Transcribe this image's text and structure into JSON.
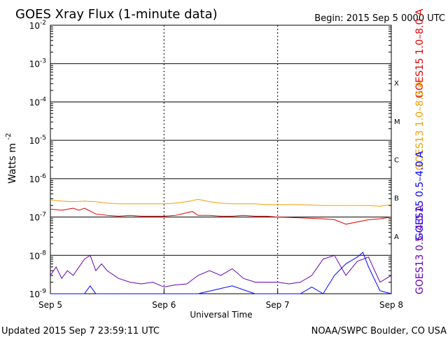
{
  "header": {
    "title": "GOES Xray Flux (1-minute data)",
    "begin_label": "Begin:  2015 Sep 5 0000 UTC"
  },
  "footer": {
    "updated": "Updated 2015 Sep  7 23:59:11 UTC",
    "source": "NOAA/SWPC Boulder, CO USA"
  },
  "chart_data": {
    "type": "line",
    "title": "GOES Xray Flux (1-minute data)",
    "xlabel": "Universal Time",
    "ylabel": "Watts m",
    "ylabel_superscript": "-2",
    "yscale": "log",
    "ylim_exponents": [
      -9,
      -2
    ],
    "y_ticks": [
      {
        "exp": "-2",
        "label": "10"
      },
      {
        "exp": "-3",
        "label": "10"
      },
      {
        "exp": "-4",
        "label": "10"
      },
      {
        "exp": "-5",
        "label": "10"
      },
      {
        "exp": "-6",
        "label": "10"
      },
      {
        "exp": "-7",
        "label": "10"
      },
      {
        "exp": "-8",
        "label": "10"
      },
      {
        "exp": "-9",
        "label": "10"
      }
    ],
    "x_ticks": [
      "Sep 5",
      "Sep 6",
      "Sep 7",
      "Sep 8"
    ],
    "xlim_days": [
      0,
      3
    ],
    "flare_classes": [
      "X",
      "M",
      "C",
      "B",
      "A"
    ],
    "grid": true,
    "legend_placement": "right",
    "series": [
      {
        "name": "GOES15 1.0–8.0 A",
        "color": "#e00000",
        "x": [
          0.0,
          0.1,
          0.2,
          0.25,
          0.3,
          0.4,
          0.5,
          0.6,
          0.7,
          0.8,
          0.9,
          1.0,
          1.1,
          1.25,
          1.3,
          1.4,
          1.5,
          1.6,
          1.7,
          1.8,
          1.9,
          2.0,
          2.2,
          2.4,
          2.5,
          2.6,
          2.8,
          2.9,
          3.0
        ],
        "y": [
          1.6e-07,
          1.5e-07,
          1.7e-07,
          1.5e-07,
          1.7e-07,
          1.2e-07,
          1.1e-07,
          1.05e-07,
          1.1e-07,
          1.05e-07,
          1.05e-07,
          1.05e-07,
          1.1e-07,
          1.4e-07,
          1.1e-07,
          1.1e-07,
          1.05e-07,
          1.05e-07,
          1.1e-07,
          1.05e-07,
          1.05e-07,
          1e-07,
          9.5e-08,
          9e-08,
          8.5e-08,
          6.5e-08,
          8.5e-08,
          9e-08,
          1e-07
        ]
      },
      {
        "name": "GOES13 1.0–8.0 A",
        "color": "#f0a000",
        "x": [
          0.0,
          0.1,
          0.2,
          0.3,
          0.4,
          0.5,
          0.6,
          0.7,
          0.8,
          0.9,
          1.0,
          1.1,
          1.2,
          1.3,
          1.4,
          1.5,
          1.6,
          1.7,
          1.8,
          1.9,
          2.0,
          2.2,
          2.4,
          2.6,
          2.8,
          2.9,
          3.0
        ],
        "y": [
          2.8e-07,
          2.6e-07,
          2.5e-07,
          2.6e-07,
          2.5e-07,
          2.3e-07,
          2.2e-07,
          2.2e-07,
          2.2e-07,
          2.2e-07,
          2.2e-07,
          2.3e-07,
          2.5e-07,
          2.9e-07,
          2.5e-07,
          2.3e-07,
          2.2e-07,
          2.2e-07,
          2.2e-07,
          2.1e-07,
          2.1e-07,
          2.1e-07,
          2e-07,
          2e-07,
          2e-07,
          1.9e-07,
          2.1e-07
        ]
      },
      {
        "name": "GOES15 0.5–4.0 A",
        "color": "#0000ff",
        "x": [
          0.0,
          0.1,
          0.2,
          0.3,
          0.35,
          0.4,
          0.5,
          0.8,
          1.0,
          1.3,
          1.6,
          1.8,
          2.0,
          2.2,
          2.3,
          2.4,
          2.5,
          2.6,
          2.7,
          2.75,
          2.8,
          2.9,
          3.0
        ],
        "y": [
          1e-09,
          1e-09,
          1e-09,
          1e-09,
          1.6e-09,
          1e-09,
          1e-09,
          1e-09,
          1e-09,
          1e-09,
          1.6e-09,
          1e-09,
          1e-09,
          1e-09,
          1.5e-09,
          1e-09,
          3e-09,
          6e-09,
          9e-09,
          1.2e-08,
          5e-09,
          1.2e-09,
          1e-09
        ]
      },
      {
        "name": "GOES13 0.5–4.0 A",
        "color": "#6a00b0",
        "x": [
          0.0,
          0.05,
          0.1,
          0.15,
          0.2,
          0.3,
          0.35,
          0.4,
          0.45,
          0.5,
          0.6,
          0.7,
          0.8,
          0.9,
          1.0,
          1.1,
          1.2,
          1.3,
          1.4,
          1.5,
          1.6,
          1.7,
          1.8,
          1.9,
          2.0,
          2.1,
          2.2,
          2.3,
          2.4,
          2.5,
          2.6,
          2.7,
          2.8,
          2.9,
          3.0
        ],
        "y": [
          3e-09,
          5e-09,
          2.5e-09,
          4e-09,
          3e-09,
          8e-09,
          1e-08,
          4e-09,
          6e-09,
          4e-09,
          2.5e-09,
          2e-09,
          1.8e-09,
          2e-09,
          1.5e-09,
          1.7e-09,
          1.8e-09,
          3e-09,
          4e-09,
          3e-09,
          4.5e-09,
          2.5e-09,
          2e-09,
          2e-09,
          2e-09,
          1.8e-09,
          2e-09,
          3e-09,
          8e-09,
          1e-08,
          3e-09,
          7e-09,
          9e-09,
          2e-09,
          3e-09
        ]
      }
    ]
  }
}
